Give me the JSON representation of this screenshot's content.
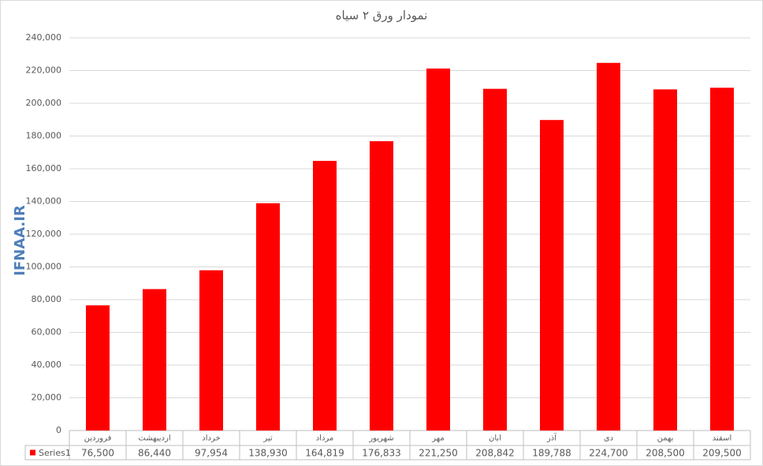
{
  "chart_data": {
    "type": "bar",
    "title": "نمودار ورق ۲ سیاه",
    "watermark": "IFNAA.IR",
    "categories": [
      "فروردین",
      "اردیبهشت",
      "خرداد",
      "تیر",
      "مرداد",
      "شهریور",
      "مهر",
      "ابان",
      "آذر",
      "دی",
      "بهمن",
      "اسفند"
    ],
    "series": [
      {
        "name": "Series1",
        "color": "#ff0000",
        "values": [
          76500,
          86440,
          97954,
          138930,
          164819,
          176833,
          221250,
          208842,
          189788,
          224700,
          208500,
          209500
        ],
        "value_labels": [
          "76,500",
          "86,440",
          "97,954",
          "138,930",
          "164,819",
          "176,833",
          "221,250",
          "208,842",
          "189,788",
          "224,700",
          "208,500",
          "209,500"
        ]
      }
    ],
    "ylim": [
      0,
      240000
    ],
    "yticks": [
      0,
      {
        "value": 20000,
        "label": "20,000"
      },
      {
        "value": 40000,
        "label": "40,000"
      },
      {
        "value": 60000,
        "label": "60,000"
      },
      {
        "value": 80000,
        "label": "80,000"
      },
      {
        "value": 100000,
        "label": "100,000"
      },
      {
        "value": 120000,
        "label": "120,000"
      },
      {
        "value": 140000,
        "label": "140,000"
      },
      {
        "value": 160000,
        "label": "160,000"
      },
      {
        "value": 180000,
        "label": "180,000"
      },
      {
        "value": 200000,
        "label": "200,000"
      },
      {
        "value": 220000,
        "label": "220,000"
      },
      {
        "value": 240000,
        "label": "240,000"
      }
    ],
    "grid": true
  }
}
